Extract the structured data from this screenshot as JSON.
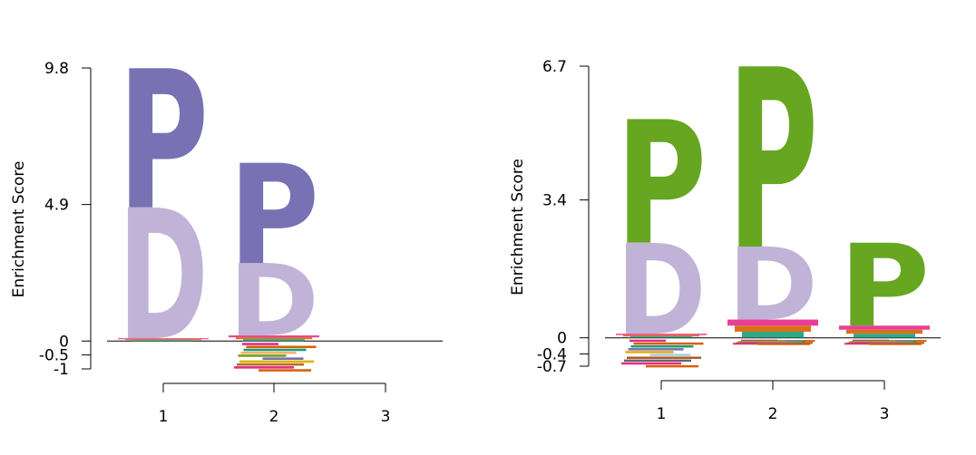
{
  "chart_data": [
    {
      "type": "sequence-logo",
      "ylabel": "Enrichment Score",
      "ylim": [
        -1,
        9.8
      ],
      "yticks": [
        {
          "value": 9.8,
          "label": "9.8"
        },
        {
          "value": 4.9,
          "label": "4.9"
        },
        {
          "value": 0,
          "label": "0"
        },
        {
          "value": -0.5,
          "label": "-0.5"
        },
        {
          "value": -1,
          "label": "-1"
        }
      ],
      "positions": [
        "1",
        "2",
        "3"
      ],
      "stacks": [
        {
          "position": "1",
          "letters": [
            {
              "letter": "D",
              "bottom": 0.1,
              "top": 4.8,
              "color": "#c1b3d7"
            },
            {
              "letter": "P",
              "bottom": 4.8,
              "top": 9.8,
              "color": "#7871b4"
            }
          ],
          "depleted_min": 0
        },
        {
          "position": "2",
          "letters": [
            {
              "letter": "D",
              "bottom": 0.2,
              "top": 2.8,
              "color": "#c1b3d7"
            },
            {
              "letter": "P",
              "bottom": 2.8,
              "top": 6.4,
              "color": "#7871b4"
            }
          ],
          "depleted_min": -1.05
        },
        {
          "position": "3",
          "letters": [],
          "depleted_min": 0
        }
      ]
    },
    {
      "type": "sequence-logo",
      "ylabel": "Enrichment Score",
      "ylim": [
        -0.7,
        6.7
      ],
      "yticks": [
        {
          "value": 6.7,
          "label": "6.7"
        },
        {
          "value": 3.4,
          "label": "3.4"
        },
        {
          "value": 0,
          "label": "0"
        },
        {
          "value": -0.4,
          "label": "-0.4"
        },
        {
          "value": -0.7,
          "label": "-0.7"
        }
      ],
      "positions": [
        "1",
        "2",
        "3"
      ],
      "stacks": [
        {
          "position": "1",
          "letters": [
            {
              "letter": "D",
              "bottom": 0.1,
              "top": 2.35,
              "color": "#c1b3d7"
            },
            {
              "letter": "P",
              "bottom": 2.35,
              "top": 5.4,
              "color": "#67a621"
            }
          ],
          "depleted_min": -0.7
        },
        {
          "position": "2",
          "letters": [
            {
              "letter": "D",
              "bottom": 0.45,
              "top": 2.25,
              "color": "#c1b3d7"
            },
            {
              "letter": "P",
              "bottom": 2.25,
              "top": 6.7,
              "color": "#67a621"
            }
          ],
          "depleted_min": -0.1
        },
        {
          "position": "3",
          "letters": [
            {
              "letter": "P",
              "bottom": 0.3,
              "top": 2.35,
              "color": "#67a621"
            }
          ],
          "depleted_min": -0.1
        }
      ]
    }
  ]
}
